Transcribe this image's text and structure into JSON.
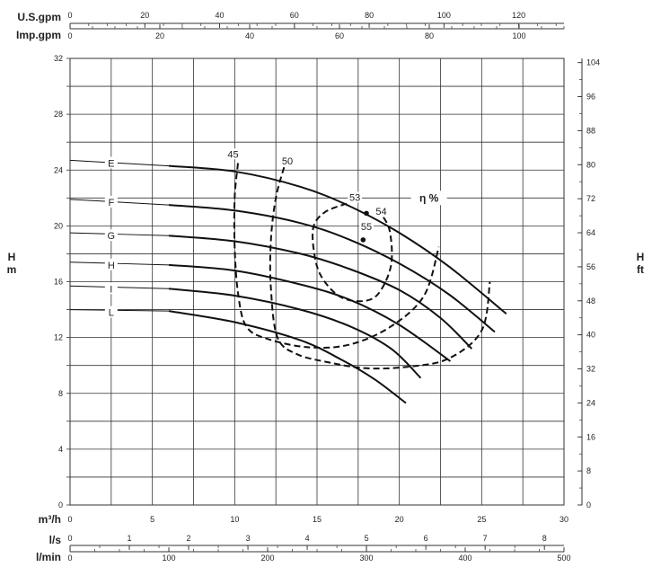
{
  "chart_data": {
    "type": "line",
    "title": "",
    "axes": {
      "m3h": {
        "label": "m³/h",
        "range": [
          0,
          30
        ],
        "ticks": [
          0,
          5,
          10,
          15,
          20,
          25,
          30
        ]
      },
      "ls": {
        "label": "l/s",
        "range": [
          0,
          8.33
        ],
        "ticks": [
          0,
          1,
          2,
          3,
          4,
          5,
          6,
          7,
          8
        ]
      },
      "lmin": {
        "label": "l/min",
        "range": [
          0,
          500
        ],
        "ticks": [
          0,
          100,
          200,
          300,
          400,
          500
        ]
      },
      "usgpm": {
        "label": "U.S.gpm",
        "range": [
          0,
          132.1
        ],
        "ticks": [
          0,
          20,
          40,
          60,
          80,
          100,
          120
        ]
      },
      "impgpm": {
        "label": "Imp.gpm",
        "range": [
          0,
          110
        ],
        "ticks": [
          0,
          20,
          40,
          60,
          80,
          100
        ]
      },
      "hm": {
        "label": "H\nm",
        "range": [
          0,
          32
        ],
        "ticks": [
          0,
          4,
          8,
          12,
          16,
          20,
          24,
          28,
          32
        ]
      },
      "hft": {
        "label": "H\nft",
        "range": [
          0,
          104.99
        ],
        "ticks": [
          0,
          8,
          16,
          24,
          32,
          40,
          48,
          56,
          64,
          72,
          80,
          88,
          96,
          104
        ]
      }
    },
    "grid": true,
    "series": [
      {
        "name": "E",
        "x": [
          0,
          6,
          10,
          14,
          17,
          20,
          23,
          26.5
        ],
        "y": [
          24.7,
          24.3,
          23.9,
          22.8,
          21.4,
          19.5,
          17.1,
          13.7
        ]
      },
      {
        "name": "F",
        "x": [
          0,
          6,
          10,
          14,
          17,
          20,
          23,
          25.8
        ],
        "y": [
          21.9,
          21.5,
          21.1,
          20.2,
          19.0,
          17.3,
          15.1,
          12.4
        ]
      },
      {
        "name": "G",
        "x": [
          0,
          6,
          10,
          14,
          17,
          20,
          22.5,
          24.4
        ],
        "y": [
          19.5,
          19.3,
          18.9,
          18.0,
          16.9,
          15.4,
          13.4,
          11.2
        ]
      },
      {
        "name": "H",
        "x": [
          0,
          6,
          10,
          14,
          17,
          20,
          23.1
        ],
        "y": [
          17.4,
          17.2,
          16.8,
          15.8,
          14.7,
          12.9,
          10.3
        ]
      },
      {
        "name": "I",
        "x": [
          0,
          6,
          10,
          14,
          17,
          19.5,
          21.3
        ],
        "y": [
          15.7,
          15.5,
          15.0,
          14.0,
          12.8,
          11.2,
          9.1
        ]
      },
      {
        "name": "L",
        "x": [
          0,
          6,
          10,
          14,
          16.5,
          18.5,
          20.4
        ],
        "y": [
          14.0,
          13.9,
          13.1,
          11.8,
          10.4,
          9.0,
          7.3
        ]
      }
    ],
    "efficiency": {
      "label": "η %",
      "lines": [
        {
          "name": "45",
          "x": [
            10.2,
            10.0,
            10.0,
            10.2,
            10.7,
            12.0,
            14.5,
            17.0,
            19.5,
            21.5,
            22.4
          ],
          "y": [
            24.5,
            22.0,
            18.5,
            15.2,
            12.8,
            11.9,
            11.3,
            11.5,
            12.8,
            15.0,
            18.5
          ]
        },
        {
          "name": "50",
          "x": [
            13.0,
            12.5,
            12.2,
            12.2,
            12.6,
            13.8,
            15.8,
            18.0,
            20.5,
            23.0,
            25.0,
            25.5
          ],
          "y": [
            24.2,
            22.0,
            19.0,
            15.5,
            12.0,
            10.8,
            10.2,
            9.8,
            9.9,
            10.5,
            12.5,
            16.0
          ]
        },
        {
          "name": "53",
          "x": [
            16.8,
            15.5,
            14.8,
            14.8,
            15.2,
            16.3,
            17.6,
            18.7,
            19.5,
            19.4,
            18.8
          ],
          "y": [
            21.6,
            21.0,
            20.0,
            18.3,
            16.5,
            15.0,
            14.6,
            15.1,
            17.2,
            19.7,
            21.0
          ]
        }
      ],
      "labels": [
        {
          "text": "45",
          "x": 9.9,
          "y": 24.9
        },
        {
          "text": "50",
          "x": 13.2,
          "y": 24.4
        },
        {
          "text": "53",
          "x": 17.3,
          "y": 21.8
        },
        {
          "text": "54",
          "x": 18.9,
          "y": 20.8
        },
        {
          "text": "55",
          "x": 18.0,
          "y": 19.7
        }
      ],
      "points": [
        {
          "name": "54",
          "x": 18.0,
          "y": 20.9
        },
        {
          "name": "55",
          "x": 17.8,
          "y": 19.0
        }
      ],
      "symbol_position": {
        "x": 21.8,
        "y": 22.0
      }
    }
  }
}
